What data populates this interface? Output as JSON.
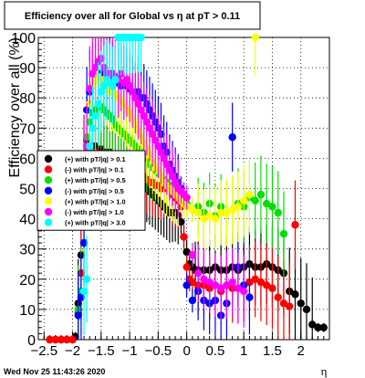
{
  "footer_text": "Wed Nov 25 11:43:26 2020",
  "chart_data": {
    "type": "scatter",
    "title": "Efficiency over all for Global vs η at pT > 0.11",
    "xlabel": "η",
    "ylabel": "Efficiency over all (%)",
    "xlim": [
      -2.6,
      2.5
    ],
    "ylim": [
      0,
      100
    ],
    "x_ticks": [
      -2.5,
      -2,
      -1.5,
      -1,
      -0.5,
      0,
      0.5,
      1,
      1.5,
      2
    ],
    "x_tick_labels": [
      "−2.5",
      "−2",
      "−1.5",
      "−1",
      "−0.5",
      "0",
      "0.5",
      "1",
      "1.5",
      "2"
    ],
    "y_ticks": [
      0,
      10,
      20,
      30,
      40,
      50,
      60,
      70,
      80,
      90,
      100
    ],
    "grid": true,
    "legend_position": "middle-left",
    "series": [
      {
        "name": "(+) with pT/|q| > 0.1",
        "color": "#000000",
        "x": [
          -2.4,
          -2.3,
          -2.2,
          -2.1,
          -2.0,
          -1.95,
          -1.9,
          -1.85,
          -1.8,
          -1.75,
          -1.7,
          -1.65,
          -1.6,
          -1.55,
          -1.5,
          -1.45,
          -1.4,
          -1.35,
          -1.3,
          -1.25,
          -1.2,
          -1.15,
          -1.1,
          -1.05,
          -1.0,
          -0.95,
          -0.9,
          -0.85,
          -0.8,
          -0.75,
          -0.7,
          -0.65,
          -0.6,
          -0.55,
          -0.5,
          -0.45,
          -0.4,
          -0.35,
          -0.3,
          -0.25,
          -0.2,
          -0.15,
          -0.1,
          -0.05,
          0.0,
          0.05,
          0.1,
          0.15,
          0.2,
          0.3,
          0.4,
          0.5,
          0.6,
          0.7,
          0.8,
          0.9,
          1.0,
          1.1,
          1.2,
          1.3,
          1.4,
          1.5,
          1.6,
          1.7,
          1.8,
          1.9,
          2.0,
          2.1,
          2.2,
          2.3,
          2.4
        ],
        "y": [
          0,
          0,
          0,
          0,
          0,
          1,
          12,
          28,
          60,
          66,
          64,
          64,
          64,
          63,
          63,
          62,
          62,
          62,
          61,
          60,
          60,
          59,
          58,
          57,
          56,
          55,
          54,
          53,
          52,
          51,
          50,
          49,
          48,
          47,
          46,
          45,
          44,
          43,
          42,
          42,
          42,
          41,
          39,
          34,
          29,
          25,
          24,
          23,
          23,
          23,
          23,
          24,
          23,
          23,
          24,
          23,
          24,
          25,
          24,
          24,
          25,
          24,
          23,
          22,
          16,
          15,
          12,
          10,
          5,
          4,
          4
        ]
      },
      {
        "name": "(-) with pT/|q| > 0.1",
        "color": "#ff0000",
        "x": [
          -2.4,
          -2.3,
          -2.2,
          -2.1,
          -2.0,
          -1.9,
          -1.85,
          -1.8,
          -1.75,
          -1.7,
          -1.65,
          -1.6,
          -1.55,
          -1.5,
          -1.45,
          -1.4,
          -1.35,
          -1.3,
          -1.25,
          -1.2,
          -1.15,
          -1.1,
          -1.05,
          -1.0,
          -0.95,
          -0.9,
          -0.85,
          -0.8,
          -0.75,
          -0.7,
          -0.65,
          -0.6,
          -0.55,
          -0.5,
          -0.45,
          -0.4,
          -0.35,
          -0.3,
          -0.25,
          -0.2,
          -0.15,
          -0.1,
          -0.05,
          0.0,
          0.05,
          0.1,
          0.2,
          0.3,
          0.4,
          0.5,
          0.6,
          0.7,
          0.8,
          0.9,
          1.0,
          1.1,
          1.2,
          1.3,
          1.4,
          1.5,
          1.6,
          1.7,
          1.8,
          1.9
        ],
        "y": [
          0,
          0,
          0,
          0,
          0,
          9,
          22,
          58,
          62,
          62,
          62,
          62,
          61,
          61,
          60,
          60,
          60,
          60,
          59,
          59,
          58,
          58,
          57,
          57,
          56,
          56,
          55,
          55,
          54,
          53,
          52,
          52,
          51,
          51,
          50,
          50,
          52,
          50,
          48,
          47,
          46,
          44,
          34,
          24,
          20,
          19,
          18,
          18,
          17,
          18,
          16,
          18,
          17,
          17,
          18,
          19,
          20,
          19,
          18,
          17,
          14,
          12,
          11,
          38
        ]
      },
      {
        "name": "(+) with pT/|q| > 0.5",
        "color": "#00e000",
        "x": [
          -1.9,
          -1.85,
          -1.8,
          -1.75,
          -1.7,
          -1.65,
          -1.6,
          -1.55,
          -1.5,
          -1.45,
          -1.4,
          -1.35,
          -1.3,
          -1.25,
          -1.2,
          -1.15,
          -1.1,
          -1.05,
          -1.0,
          -0.95,
          -0.9,
          -0.85,
          -0.8,
          -0.75,
          -0.7,
          -0.65,
          -0.6,
          -0.55,
          -0.5,
          -0.45,
          -0.4,
          -0.35,
          -0.3,
          -0.25,
          -0.2,
          -0.15,
          -0.1,
          -0.05,
          0.0,
          0.1,
          0.2,
          0.3,
          0.4,
          0.5,
          0.6,
          0.7,
          0.8,
          0.9,
          1.0,
          1.1,
          1.2,
          1.3,
          1.4,
          1.5,
          1.6,
          1.7
        ],
        "y": [
          10,
          16,
          32,
          67,
          72,
          75,
          76,
          77,
          77,
          76,
          75,
          74,
          73,
          71,
          70,
          69,
          68,
          67,
          66,
          65,
          64,
          63,
          62,
          61,
          60,
          58,
          57,
          56,
          55,
          54,
          53,
          52,
          51,
          50,
          49,
          48,
          47,
          46,
          45,
          43,
          44,
          42,
          45,
          41,
          44,
          42,
          43,
          45,
          44,
          47,
          46,
          48,
          45,
          44,
          42,
          35
        ]
      },
      {
        "name": "(-) with pT/|q| > 0.5",
        "color": "#0000ff",
        "x": [
          -1.9,
          -1.85,
          -1.8,
          -1.75,
          -1.7,
          -1.65,
          -1.6,
          -1.55,
          -1.5,
          -1.45,
          -1.4,
          -1.35,
          -1.3,
          -1.25,
          -1.2,
          -1.15,
          -1.1,
          -1.05,
          -1.0,
          -0.95,
          -0.9,
          -0.85,
          -0.8,
          -0.75,
          -0.7,
          -0.65,
          -0.6,
          -0.55,
          -0.5,
          -0.45,
          -0.4,
          -0.35,
          -0.3,
          -0.25,
          -0.2,
          -0.15,
          -0.1,
          -0.05,
          0.0,
          0.1,
          0.2,
          0.3,
          0.4,
          0.5,
          0.6,
          0.7,
          0.8,
          0.9,
          1.0,
          1.1
        ],
        "y": [
          8,
          14,
          32,
          76,
          82,
          84,
          86,
          87,
          88,
          88,
          87,
          88,
          86,
          85,
          86,
          84,
          85,
          84,
          83,
          82,
          80,
          82,
          80,
          80,
          78,
          76,
          74,
          72,
          70,
          68,
          64,
          62,
          58,
          56,
          54,
          52,
          50,
          48,
          18,
          13,
          16,
          13,
          12,
          13,
          8,
          12,
          67,
          24,
          18,
          14
        ]
      },
      {
        "name": "(+) with pT/|q| > 1.0",
        "color": "#ffff00",
        "x": [
          -1.8,
          -1.75,
          -1.7,
          -1.65,
          -1.6,
          -1.55,
          -1.5,
          -1.45,
          -1.4,
          -1.35,
          -1.3,
          -1.25,
          -1.2,
          -1.15,
          -1.1,
          -1.05,
          -1.0,
          -0.95,
          -0.9,
          -0.85,
          -0.8,
          -0.75,
          -0.7,
          -0.65,
          -0.6,
          -0.55,
          -0.5,
          -0.45,
          -0.4,
          -0.35,
          -0.3,
          -0.25,
          -0.2,
          -0.15,
          -0.1,
          -0.05,
          0.0,
          0.1,
          0.2,
          0.3,
          0.4,
          0.5,
          0.6,
          0.7,
          0.8,
          0.9,
          1.0,
          1.1,
          1.2
        ],
        "y": [
          58,
          64,
          78,
          84,
          86,
          87,
          85,
          86,
          84,
          82,
          82,
          81,
          80,
          79,
          78,
          76,
          75,
          73,
          71,
          69,
          67,
          65,
          63,
          61,
          59,
          57,
          56,
          54,
          52,
          51,
          50,
          49,
          48,
          47,
          46,
          45,
          44,
          43,
          42,
          40,
          41,
          40,
          42,
          42,
          43,
          44,
          46,
          48,
          100
        ]
      },
      {
        "name": "(-) with pT/|q| > 1.0",
        "color": "#ff00ff",
        "x": [
          -1.8,
          -1.75,
          -1.7,
          -1.65,
          -1.6,
          -1.55,
          -1.5,
          -1.45,
          -1.4,
          -1.35,
          -1.3,
          -1.25,
          -1.2,
          -1.15,
          -1.1,
          -1.05,
          -1.0,
          -0.95,
          -0.9,
          -0.85,
          -0.8,
          -0.75,
          -0.7,
          -0.65,
          -0.6,
          -0.55,
          -0.5,
          -0.45,
          -0.4,
          -0.35,
          -0.3,
          -0.25,
          -0.2,
          -0.15,
          -0.1,
          -0.05,
          0.0,
          0.1,
          0.2,
          0.3,
          0.4,
          0.5,
          0.6,
          0.7,
          0.8,
          0.9,
          1.0
        ],
        "y": [
          60,
          64,
          83,
          88,
          90,
          92,
          93,
          90,
          88,
          86,
          88,
          87,
          86,
          88,
          85,
          86,
          84,
          82,
          80,
          78,
          76,
          74,
          72,
          70,
          68,
          66,
          64,
          62,
          60,
          58,
          56,
          54,
          52,
          50,
          49,
          48,
          47,
          28,
          22,
          20,
          19,
          18,
          17,
          18,
          19,
          17,
          16
        ]
      },
      {
        "name": "(+) with pT/|q| > 3.0",
        "color": "#00ffff",
        "x": [
          -1.8,
          -1.75,
          -1.7,
          -1.65,
          -1.6,
          -1.55,
          -1.5,
          -1.45,
          -1.4,
          -1.35,
          -1.3,
          -1.25,
          -1.2,
          -1.15,
          -1.1,
          -1.05,
          -1.0,
          -0.95,
          -0.9,
          -0.85,
          -0.8
        ],
        "y": [
          16,
          20,
          64,
          70,
          74,
          78,
          82,
          84,
          86,
          85,
          84,
          86,
          100,
          100,
          100,
          100,
          100,
          100,
          100,
          100,
          100
        ]
      }
    ]
  }
}
